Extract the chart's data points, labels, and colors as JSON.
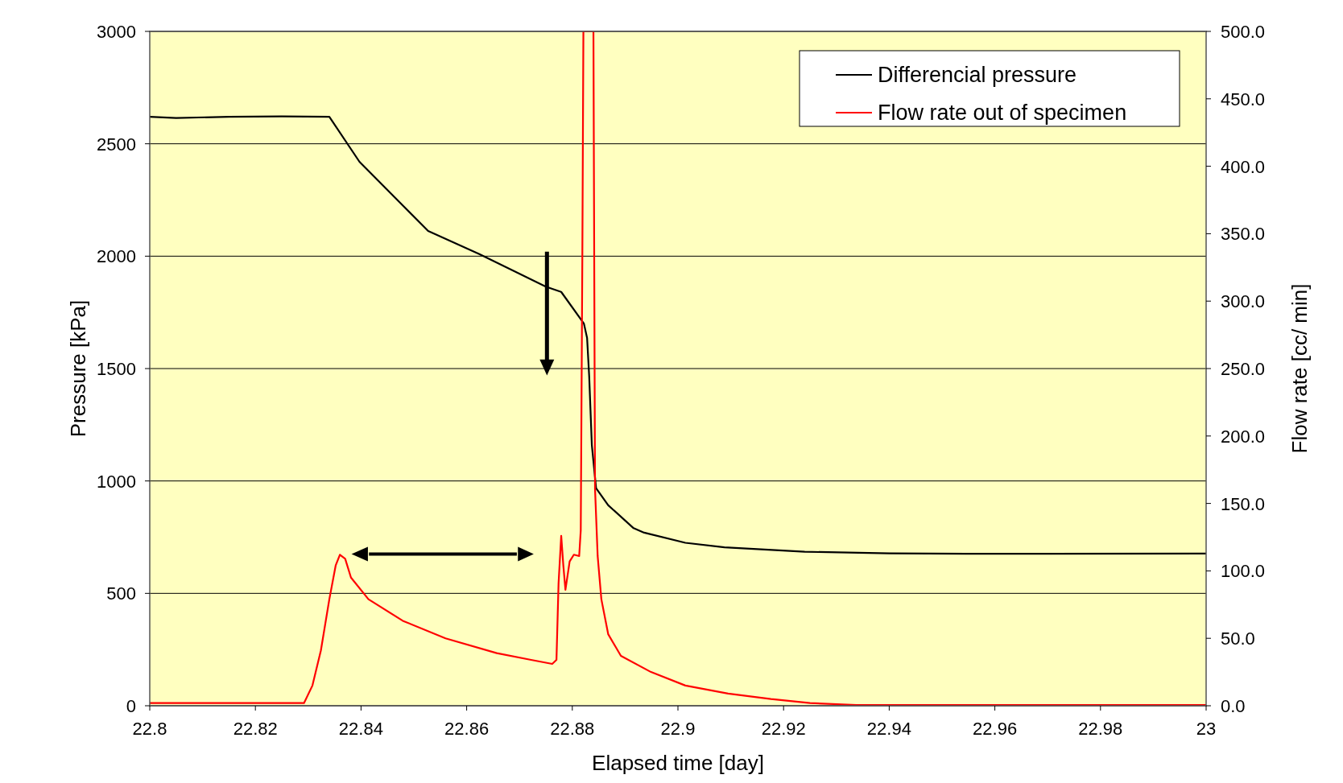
{
  "chart_data": {
    "type": "line",
    "xlabel": "Elapsed time [day]",
    "ylabel": "Pressure [kPa]",
    "y2label": "Flow rate [cc/ min]",
    "xlim": [
      22.8,
      23
    ],
    "xticks": [
      22.8,
      22.82,
      22.84,
      22.86,
      22.88,
      22.9,
      22.92,
      22.94,
      22.96,
      22.98,
      23
    ],
    "ylim": [
      0,
      3000
    ],
    "yticks": [
      0,
      500,
      1000,
      1500,
      2000,
      2500,
      3000
    ],
    "y2lim": [
      0,
      500
    ],
    "y2ticks": [
      {
        "value": 0,
        "label": "0.0"
      },
      {
        "value": 50,
        "label": "50.0"
      },
      {
        "value": 100,
        "label": "100.0"
      },
      {
        "value": 150,
        "label": "150.0"
      },
      {
        "value": 200,
        "label": "200.0"
      },
      {
        "value": 250,
        "label": "250.0"
      },
      {
        "value": 300,
        "label": "300.0"
      },
      {
        "value": 350,
        "label": "350.0"
      },
      {
        "value": 400,
        "label": "400.0"
      },
      {
        "value": 450,
        "label": "450.0"
      },
      {
        "value": 500,
        "label": "500.0"
      }
    ],
    "grid": "y",
    "legend": "top right",
    "series": [
      {
        "name": "Differencial pressure",
        "color": "#000000",
        "x": [
          22.8,
          22.805,
          22.815,
          22.825,
          22.834,
          22.8397,
          22.8527,
          22.8624,
          22.875,
          22.8779,
          22.8822,
          22.8828,
          22.8832,
          22.8837,
          22.8845,
          22.8868,
          22.8916,
          22.8936,
          22.9014,
          22.9088,
          22.924,
          22.94,
          22.9546,
          22.97,
          23
        ],
        "values": [
          2620,
          2615,
          2620,
          2622,
          2620,
          2420,
          2112,
          2009,
          1864,
          1841,
          1700,
          1636,
          1464,
          1159,
          968,
          892,
          790,
          770,
          725,
          705,
          685,
          678,
          676,
          676,
          677
        ]
      },
      {
        "name": "Flow rate out of specimen",
        "color": "#ff0000",
        "axis": "y2",
        "x": [
          22.8,
          22.815,
          22.8292,
          22.8308,
          22.8324,
          22.834,
          22.8352,
          22.836,
          22.837,
          22.8381,
          22.8414,
          22.8479,
          22.856,
          22.8657,
          22.8722,
          22.8762,
          22.877,
          22.8774,
          22.8779,
          22.8783,
          22.8787,
          22.8795,
          22.8803,
          22.8813,
          22.8816,
          22.8819,
          22.8821,
          22.884,
          22.8843,
          22.8848,
          22.8855,
          22.8868,
          22.8892,
          22.8949,
          22.9014,
          22.9095,
          22.9176,
          22.925,
          22.9338,
          22.96,
          23
        ],
        "values": [
          2,
          2,
          2,
          15,
          41,
          79,
          104,
          112,
          109,
          95,
          79,
          63,
          50,
          39,
          34,
          31,
          34,
          91,
          126,
          104,
          86,
          107,
          112,
          111,
          130,
          333,
          500,
          500,
          161,
          111,
          79,
          53,
          37,
          25,
          15,
          9,
          5,
          2,
          0.6,
          0.5,
          0.5
        ]
      }
    ]
  }
}
